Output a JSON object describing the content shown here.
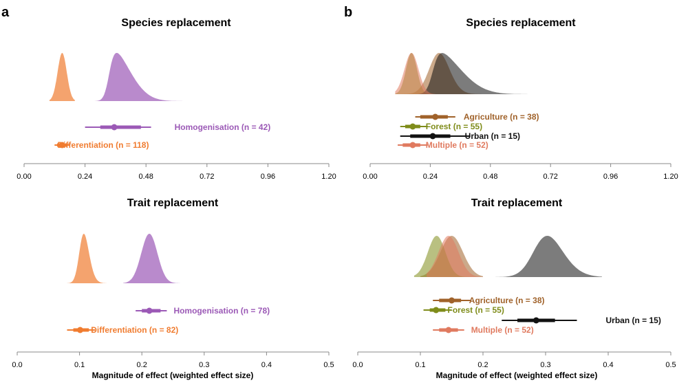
{
  "figure": {
    "panel_labels": [
      "a",
      "b"
    ],
    "xlabel": "Magnitude of effect (weighted effect size)"
  },
  "colors": {
    "homogenisation": "#9b59b6",
    "differentiation": "#f07c30",
    "agriculture": "#a0622a",
    "forest": "#7f8c1a",
    "urban": "#111111",
    "multiple": "#e07a5f",
    "axis": "#888888"
  },
  "chart_data": [
    {
      "panel": "a",
      "type": "area",
      "title": "Species replacement",
      "xticks": [
        "0.00",
        "0.24",
        "0.48",
        "0.72",
        "0.96",
        "1.20"
      ],
      "xlim": [
        0,
        1.2
      ],
      "series": [
        {
          "key": "homogenisation",
          "label": "Homogenisation (n = 42)",
          "density": {
            "mean": 0.335,
            "sd": 0.075,
            "skew": 4.5,
            "lo": 0.2,
            "hi": 0.63
          },
          "point": 0.355,
          "ci66": [
            0.3,
            0.46
          ],
          "ci95": [
            0.24,
            0.5
          ]
        },
        {
          "key": "differentiation",
          "label": "Differentiation (n = 118)",
          "density": {
            "mean": 0.15,
            "sd": 0.018,
            "skew": 0,
            "lo": 0.1,
            "hi": 0.2
          },
          "point": 0.15,
          "ci66": [
            0.13,
            0.17
          ],
          "ci95": [
            0.12,
            0.18
          ]
        }
      ]
    },
    {
      "panel": "b",
      "type": "area",
      "title": "Species replacement",
      "xticks": [
        "0.00",
        "0.24",
        "0.48",
        "0.72",
        "0.96",
        "1.20"
      ],
      "xlim": [
        0,
        1.2
      ],
      "series": [
        {
          "key": "agriculture",
          "label": "Agriculture (n = 38)",
          "density": {
            "mean": 0.25,
            "sd": 0.05,
            "skew": 1,
            "lo": 0.12,
            "hi": 0.45
          },
          "point": 0.26,
          "ci66": [
            0.2,
            0.31
          ],
          "ci95": [
            0.18,
            0.34
          ]
        },
        {
          "key": "forest",
          "label": "Forest (n = 55)",
          "density": {
            "mean": 0.165,
            "sd": 0.022,
            "skew": 0,
            "lo": 0.1,
            "hi": 0.25
          },
          "point": 0.17,
          "ci66": [
            0.14,
            0.2
          ],
          "ci95": [
            0.12,
            0.23
          ]
        },
        {
          "key": "urban",
          "label": "Urban (n = 15)",
          "density": {
            "mean": 0.25,
            "sd": 0.1,
            "skew": 5,
            "lo": 0.12,
            "hi": 0.68
          },
          "point": 0.25,
          "ci66": [
            0.16,
            0.32
          ],
          "ci95": [
            0.12,
            0.4
          ]
        },
        {
          "key": "multiple",
          "label": "Multiple (n = 52)",
          "density": {
            "mean": 0.165,
            "sd": 0.028,
            "skew": 0,
            "lo": 0.1,
            "hi": 0.26
          },
          "point": 0.17,
          "ci66": [
            0.13,
            0.2
          ],
          "ci95": [
            0.11,
            0.23
          ]
        }
      ]
    },
    {
      "panel": "a",
      "type": "area",
      "title": "Trait replacement",
      "xticks": [
        "0.0",
        "0.1",
        "0.2",
        "0.3",
        "0.4",
        "0.5"
      ],
      "xlim": [
        0,
        0.5
      ],
      "series": [
        {
          "key": "homogenisation",
          "label": "Homogenisation (n = 78)",
          "density": {
            "mean": 0.212,
            "sd": 0.013,
            "skew": 0,
            "lo": 0.17,
            "hi": 0.265
          },
          "point": 0.212,
          "ci66": [
            0.2,
            0.23
          ],
          "ci95": [
            0.19,
            0.24
          ]
        },
        {
          "key": "differentiation",
          "label": "Differentiation (n = 82)",
          "density": {
            "mean": 0.101,
            "sd": 0.011,
            "skew": 1.5,
            "lo": 0.075,
            "hi": 0.15
          },
          "point": 0.101,
          "ci66": [
            0.09,
            0.115
          ],
          "ci95": [
            0.08,
            0.125
          ]
        }
      ]
    },
    {
      "panel": "b",
      "type": "area",
      "title": "Trait replacement",
      "xticks": [
        "0.0",
        "0.1",
        "0.2",
        "0.3",
        "0.4",
        "0.5"
      ],
      "xlim": [
        0,
        0.5
      ],
      "series": [
        {
          "key": "agriculture",
          "label": "Agriculture (n = 38)",
          "density": {
            "mean": 0.15,
            "sd": 0.018,
            "skew": 0,
            "lo": 0.1,
            "hi": 0.2
          },
          "point": 0.15,
          "ci66": [
            0.13,
            0.165
          ],
          "ci95": [
            0.12,
            0.18
          ]
        },
        {
          "key": "forest",
          "label": "Forest (n = 55)",
          "density": {
            "mean": 0.126,
            "sd": 0.014,
            "skew": 0,
            "lo": 0.09,
            "hi": 0.18
          },
          "point": 0.125,
          "ci66": [
            0.115,
            0.14
          ],
          "ci95": [
            0.105,
            0.15
          ]
        },
        {
          "key": "urban",
          "label": "Urban (n = 15)",
          "density": {
            "mean": 0.285,
            "sd": 0.033,
            "skew": 1.5,
            "lo": 0.2,
            "hi": 0.39
          },
          "point": 0.285,
          "ci66": [
            0.255,
            0.315
          ],
          "ci95": [
            0.23,
            0.35
          ]
        },
        {
          "key": "multiple",
          "label": "Multiple (n = 52)",
          "density": {
            "mean": 0.145,
            "sd": 0.016,
            "skew": 0,
            "lo": 0.11,
            "hi": 0.2
          },
          "point": 0.145,
          "ci66": [
            0.13,
            0.16
          ],
          "ci95": [
            0.12,
            0.17
          ]
        }
      ]
    }
  ]
}
